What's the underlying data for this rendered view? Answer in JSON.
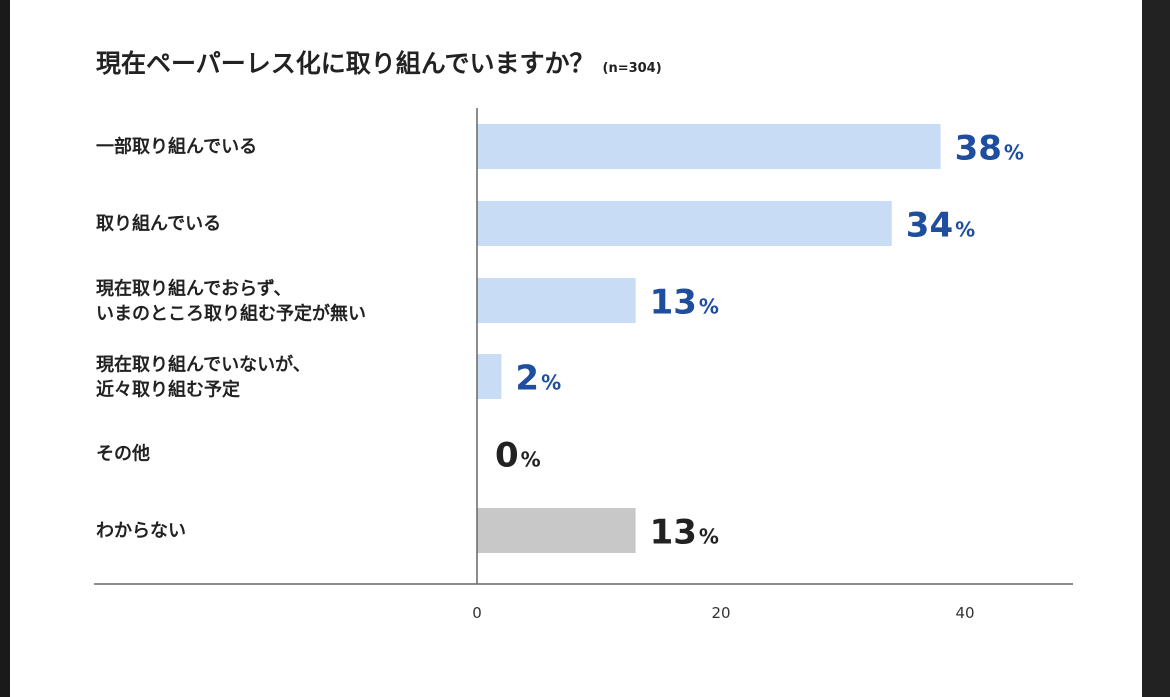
{
  "chart_data": {
    "type": "bar",
    "orientation": "horizontal",
    "title": "現在ペーパーレス化に取り組んでいますか？",
    "subtitle": "(n=304)",
    "categories": [
      [
        "一部取り組んでいる"
      ],
      [
        "取り組んでいる"
      ],
      [
        "現在取り組んでおらず、",
        "いまのところ取り組む予定が無い"
      ],
      [
        "現在取り組んでいないが、",
        "近々取り組む予定"
      ],
      [
        "その他"
      ],
      [
        "わからない"
      ]
    ],
    "values": [
      38,
      34,
      13,
      2,
      0,
      13
    ],
    "value_suffix": "%",
    "bar_colors": [
      "#c9dcf6",
      "#c9dcf6",
      "#c9dcf6",
      "#c9dcf6",
      "#c9dcf6",
      "#c8c8c8"
    ],
    "label_colors": [
      "#1f4e9e",
      "#1f4e9e",
      "#1f4e9e",
      "#1f4e9e",
      "#222222",
      "#222222"
    ],
    "xlim": [
      0,
      50
    ],
    "xticks": [
      "0",
      "20",
      "40"
    ],
    "grid": false,
    "legend": "none"
  }
}
